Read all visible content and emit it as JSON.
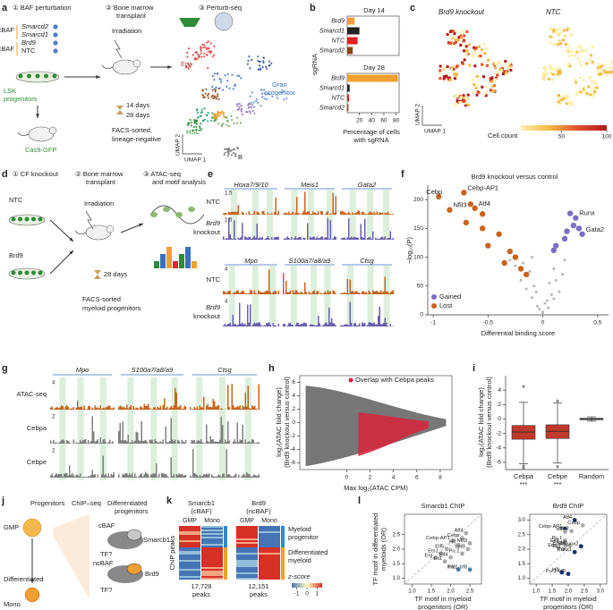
{
  "a": {
    "letter": "a",
    "steps": [
      "① BAF perturbation",
      "② Bone marrow",
      "transplant",
      "③ Perturb-seq"
    ],
    "complexes": [
      "cBAF",
      "ncBAF"
    ],
    "guides": [
      "Smarcd2",
      "Smarcd1",
      "Brd9",
      "NTC"
    ],
    "lsk": [
      "LSK",
      "progenitors"
    ],
    "cas9": "Cas9-GFP",
    "irradiation": "Irradiation",
    "days": [
      "14 days",
      "28 days"
    ],
    "facs": [
      "FACS-sorted,",
      "lineage-negative"
    ],
    "clusters": [
      "Ery",
      "GMP",
      "Gran",
      "progenitor",
      "HSC",
      "B"
    ],
    "umap_x": "UMAP 1",
    "umap_y": "UMAP 2"
  },
  "b": {
    "type": "bar",
    "letter": "b",
    "y_label": "sgRNA",
    "x_label": [
      "Percentage of cells",
      "with sgRNA"
    ],
    "xlim": [
      0,
      85
    ],
    "xticks": [
      20,
      40,
      60,
      80
    ],
    "categories": [
      "Brd9",
      "Smarcd1",
      "NTC",
      "Smarcd2"
    ],
    "colors": [
      "#f0a030",
      "#222222",
      "#e02020",
      "#8b4513"
    ],
    "panels": [
      {
        "title": "Day 14",
        "values": [
          12,
          20,
          17,
          9
        ]
      },
      {
        "title": "Day 28",
        "values": [
          83,
          4,
          3,
          2
        ]
      }
    ]
  },
  "c": {
    "letter": "c",
    "titles": [
      "Brd9 knockout",
      "NTC"
    ],
    "umap_x": "UMAP 1",
    "umap_y": "UMAP 2",
    "colorbar_title": "Cell count",
    "colorbar_lim": [
      5,
      100
    ],
    "colorbar_ticks": [
      50,
      100
    ],
    "colors": [
      "#fbf0b0",
      "#f4b942",
      "#e0502a",
      "#b01818"
    ]
  },
  "d": {
    "letter": "d",
    "steps": [
      "① CF knockout",
      "② Bone marrow",
      "transplant",
      "③ ATAC-seq",
      "and motif analysis"
    ],
    "groups": [
      "NTC",
      "Brd9"
    ],
    "irradiation": "Irradiation",
    "days": "28 days",
    "facs": [
      "FACS-sorted",
      "myeloid progenitors"
    ]
  },
  "e": {
    "letter": "e",
    "loci": [
      [
        "Hoxa7/9/10",
        "Meis1",
        "Gata2"
      ],
      [
        "Mpo",
        "S100a7/a8/a9",
        "Ctsg"
      ]
    ],
    "scales": [
      [
        1.5,
        1.5
      ],
      [
        4,
        4
      ]
    ],
    "rows": [
      "NTC",
      "Brd9",
      "knockout"
    ],
    "colors": [
      "#c8641e",
      "#6a5fb0"
    ]
  },
  "f": {
    "type": "scatter",
    "letter": "f",
    "title": "Brd9 knockout versus control",
    "x_label": "Differential binding score",
    "y_label": "−log₁₀(P)",
    "xlim": [
      -1.05,
      0.6
    ],
    "xticks": [
      -1,
      -0.5,
      0,
      0.5
    ],
    "ylim": [
      0,
      225
    ],
    "yticks": [
      0,
      50,
      100,
      150,
      200
    ],
    "series": [
      {
        "color": "#b8b8b8",
        "x": [
          -0.2,
          -0.15,
          -0.1,
          -0.05,
          0,
          0.05,
          0.1,
          0.15,
          -0.12,
          -0.08,
          0.02,
          0.08,
          -0.18,
          0.12,
          -0.03,
          0.04,
          -0.25,
          0.18,
          -0.06,
          0.06,
          -0.3,
          0.2,
          -0.1,
          0.1,
          0
        ],
        "y": [
          60,
          45,
          30,
          15,
          5,
          12,
          28,
          40,
          75,
          50,
          20,
          35,
          90,
          60,
          10,
          25,
          85,
          70,
          40,
          55,
          95,
          95,
          100,
          80,
          2
        ]
      },
      {
        "name": "Gained",
        "color": "#7b6fc4",
        "x": [
          0.3,
          0.25,
          0.28,
          0.33,
          0.22,
          0.36,
          0.2,
          0.12,
          0.1
        ],
        "y": [
          168,
          176,
          155,
          150,
          145,
          140,
          132,
          120,
          112
        ],
        "labels": [
          "Runx",
          null,
          null,
          null,
          null,
          "Gata2",
          null,
          null,
          null
        ]
      },
      {
        "name": "Lost",
        "color": "#c8641e",
        "x": [
          -0.95,
          -0.72,
          -0.85,
          -0.62,
          -0.66,
          -0.55,
          -0.7,
          -0.55,
          -0.4,
          -0.5,
          -0.3,
          -0.25,
          -0.35,
          -0.2,
          -0.15
        ],
        "y": [
          205,
          212,
          182,
          185,
          192,
          175,
          160,
          150,
          140,
          120,
          110,
          100,
          90,
          80,
          70
        ],
        "labels": [
          "Cebp",
          "Cebp-AP1",
          "Nfil3",
          "Atf4",
          null,
          null,
          null,
          null,
          null,
          null,
          null,
          null,
          null,
          null,
          null
        ]
      }
    ]
  },
  "g": {
    "letter": "g",
    "loci": [
      "Mpo",
      "S100a7/a8/a9",
      "Ctsg"
    ],
    "tracks": [
      "ATAC-seq",
      "Cebpa",
      "Cebpe"
    ],
    "scales": [
      4,
      2,
      2
    ],
    "colors": [
      "#c8641e",
      "#808080",
      "#808080"
    ]
  },
  "h": {
    "type": "scatter",
    "letter": "h",
    "x_label": "Max log₂(ATAC CPM)",
    "y_label": [
      "log₂(ATAC fold change)",
      "(Brd9 knockout versus control)"
    ],
    "legend": "Overlap with Cebpa peaks",
    "xlim": [
      -4,
      9
    ],
    "xticks": [
      0,
      2,
      4,
      6,
      8
    ],
    "ylim": [
      -7,
      7
    ],
    "yticks": [
      -6,
      -4,
      -2,
      0,
      2,
      4,
      6
    ],
    "colors": [
      "#555555",
      "#d8233a"
    ]
  },
  "i": {
    "type": "box",
    "letter": "i",
    "y_label": [
      "log₂(ATAC fold change)",
      "(Brd9 knockout versus control)"
    ],
    "ylim": [
      -7,
      6
    ],
    "yticks": [
      4,
      2,
      0,
      -2,
      -4,
      -6
    ],
    "categories": [
      "Cebpa",
      "Cebpe",
      "Random"
    ],
    "significance": [
      "***",
      "***",
      null
    ],
    "colors": [
      "#c0392b",
      "#c0392b",
      "#bbbbbb"
    ],
    "boxes": [
      {
        "low": -6.2,
        "q1": -2.8,
        "median": -1.8,
        "q3": -0.9,
        "high": 2.3,
        "outliers": [
          4.5,
          -6.5,
          -6.8
        ]
      },
      {
        "low": -6.1,
        "q1": -2.7,
        "median": -1.7,
        "q3": -0.8,
        "high": 2.2,
        "outliers": [
          2.5,
          -6.6
        ]
      },
      {
        "low": -0.3,
        "q1": -0.1,
        "median": 0,
        "q3": 0.1,
        "high": 0.3,
        "outliers": []
      }
    ]
  },
  "j": {
    "letter": "j",
    "texts": [
      "Progenitors",
      "GMP",
      "ChIP–seq",
      "Differentiated",
      "progenitors",
      "cBAF",
      "Smarcb1",
      "TF?",
      "ncBAF",
      "Brd9",
      "TF?",
      "Differentiated",
      "Mono"
    ]
  },
  "k": {
    "letter": "k",
    "heads": [
      [
        "Smarcb1",
        "(cBAF)"
      ],
      [
        "Brd9",
        "(ncBAF)"
      ]
    ],
    "columns": [
      "GMP",
      "Mono"
    ],
    "y_label": "ChIP peaks",
    "counts": [
      [
        "17,728",
        "peaks"
      ],
      [
        "12,151",
        "peaks"
      ]
    ],
    "groups": [
      [
        "Myeloid",
        "progenitor"
      ],
      [
        "Differentiated",
        "myeloid"
      ]
    ],
    "colorbar_title": "z-score",
    "zlim": [
      -1.5,
      1.5
    ],
    "zticks": [
      -1,
      0,
      1
    ]
  },
  "l": {
    "type": "scatter",
    "letter": "l",
    "y_label": [
      "TF motif in differentiated",
      "myeloids (OR)"
    ],
    "x_label": [
      "TF motif in myeloid",
      "progenitors (OR)"
    ],
    "plots": [
      {
        "title": "Smarcb1 ChIP",
        "xlim": [
          0.8,
          2.8
        ],
        "xticks": [
          {
            "value": 1,
            "label": "1.0"
          },
          1.5,
          {
            "value": 2,
            "label": "2.0"
          },
          2.5
        ],
        "ylim": [
          0.8,
          3.2
        ],
        "yticks": [
          {
            "value": 1,
            "label": "1.0"
          },
          1.5,
          {
            "value": 2,
            "label": "2.0"
          },
          2.5
        ],
        "names": [
          "Atf4",
          "Cebp",
          "Cebp-AP1",
          "Hlf",
          "Nfil3",
          "SpiB",
          "Pu.1",
          "Elf5",
          "Ets1",
          "Elf4",
          "Erg",
          "Fli1",
          "Irf8",
          "Pu.1-Irf8"
        ],
        "x": [
          2.4,
          2.3,
          2.05,
          2.2,
          2.5,
          2.45,
          2.3,
          1.9,
          1.75,
          2.0,
          1.6,
          1.85,
          2.2,
          2.5
        ],
        "y": [
          2.55,
          2.38,
          2.3,
          2.15,
          2.2,
          2.0,
          1.85,
          2.0,
          1.85,
          1.72,
          1.7,
          1.58,
          1.3,
          1.3
        ],
        "colors": [
          "#aaaaaa",
          "#aaaaaa",
          "#aaaaaa",
          "#aaaaaa",
          "#aaaaaa",
          "#aaaaaa",
          "#aaaaaa",
          "#aaaaaa",
          "#aaaaaa",
          "#aaaaaa",
          "#aaaaaa",
          "#aaaaaa",
          "#4a7fa8",
          "#4a7fa8"
        ]
      },
      {
        "title": "Brd9 ChIP",
        "xlim": [
          0.8,
          3.2
        ],
        "xticks": [
          {
            "value": 1,
            "label": "1.0"
          },
          1.5,
          {
            "value": 2,
            "label": "2.0"
          },
          2.5,
          {
            "value": 3,
            "label": "3.0"
          }
        ],
        "ylim": [
          0.8,
          3.2
        ],
        "yticks": [
          {
            "value": 1,
            "label": "1.0"
          },
          1.5,
          {
            "value": 2,
            "label": "2.0"
          },
          2.5,
          {
            "value": 3,
            "label": "3.0"
          }
        ],
        "names": [
          "Atf4",
          "Cebp",
          "Cebp-AP1",
          "Hlf",
          "Nfil3",
          "Pu.1",
          "Elf4",
          "Ets1",
          "Erg",
          "SpiB",
          "Fli1",
          "Runx2",
          "Runx1",
          "Irf8",
          "Pu.1-Irf8"
        ],
        "x": [
          2.2,
          2.45,
          1.9,
          1.9,
          2.1,
          1.9,
          1.8,
          1.92,
          1.7,
          2.05,
          1.85,
          2.4,
          2.2,
          1.8,
          2.0
        ],
        "y": [
          3.0,
          2.82,
          2.7,
          2.6,
          2.62,
          2.3,
          2.2,
          2.12,
          2.05,
          2.12,
          2.0,
          2.1,
          1.9,
          1.2,
          1.15
        ],
        "colors": [
          "#1f2f6b",
          "#aaaaaa",
          "#1f2f6b",
          "#aaaaaa",
          "#aaaaaa",
          "#aaaaaa",
          "#aaaaaa",
          "#aaaaaa",
          "#aaaaaa",
          "#aaaaaa",
          "#aaaaaa",
          "#1f2f6b",
          "#1f2f6b",
          "#1f2f6b",
          "#1f2f6b"
        ]
      }
    ]
  }
}
